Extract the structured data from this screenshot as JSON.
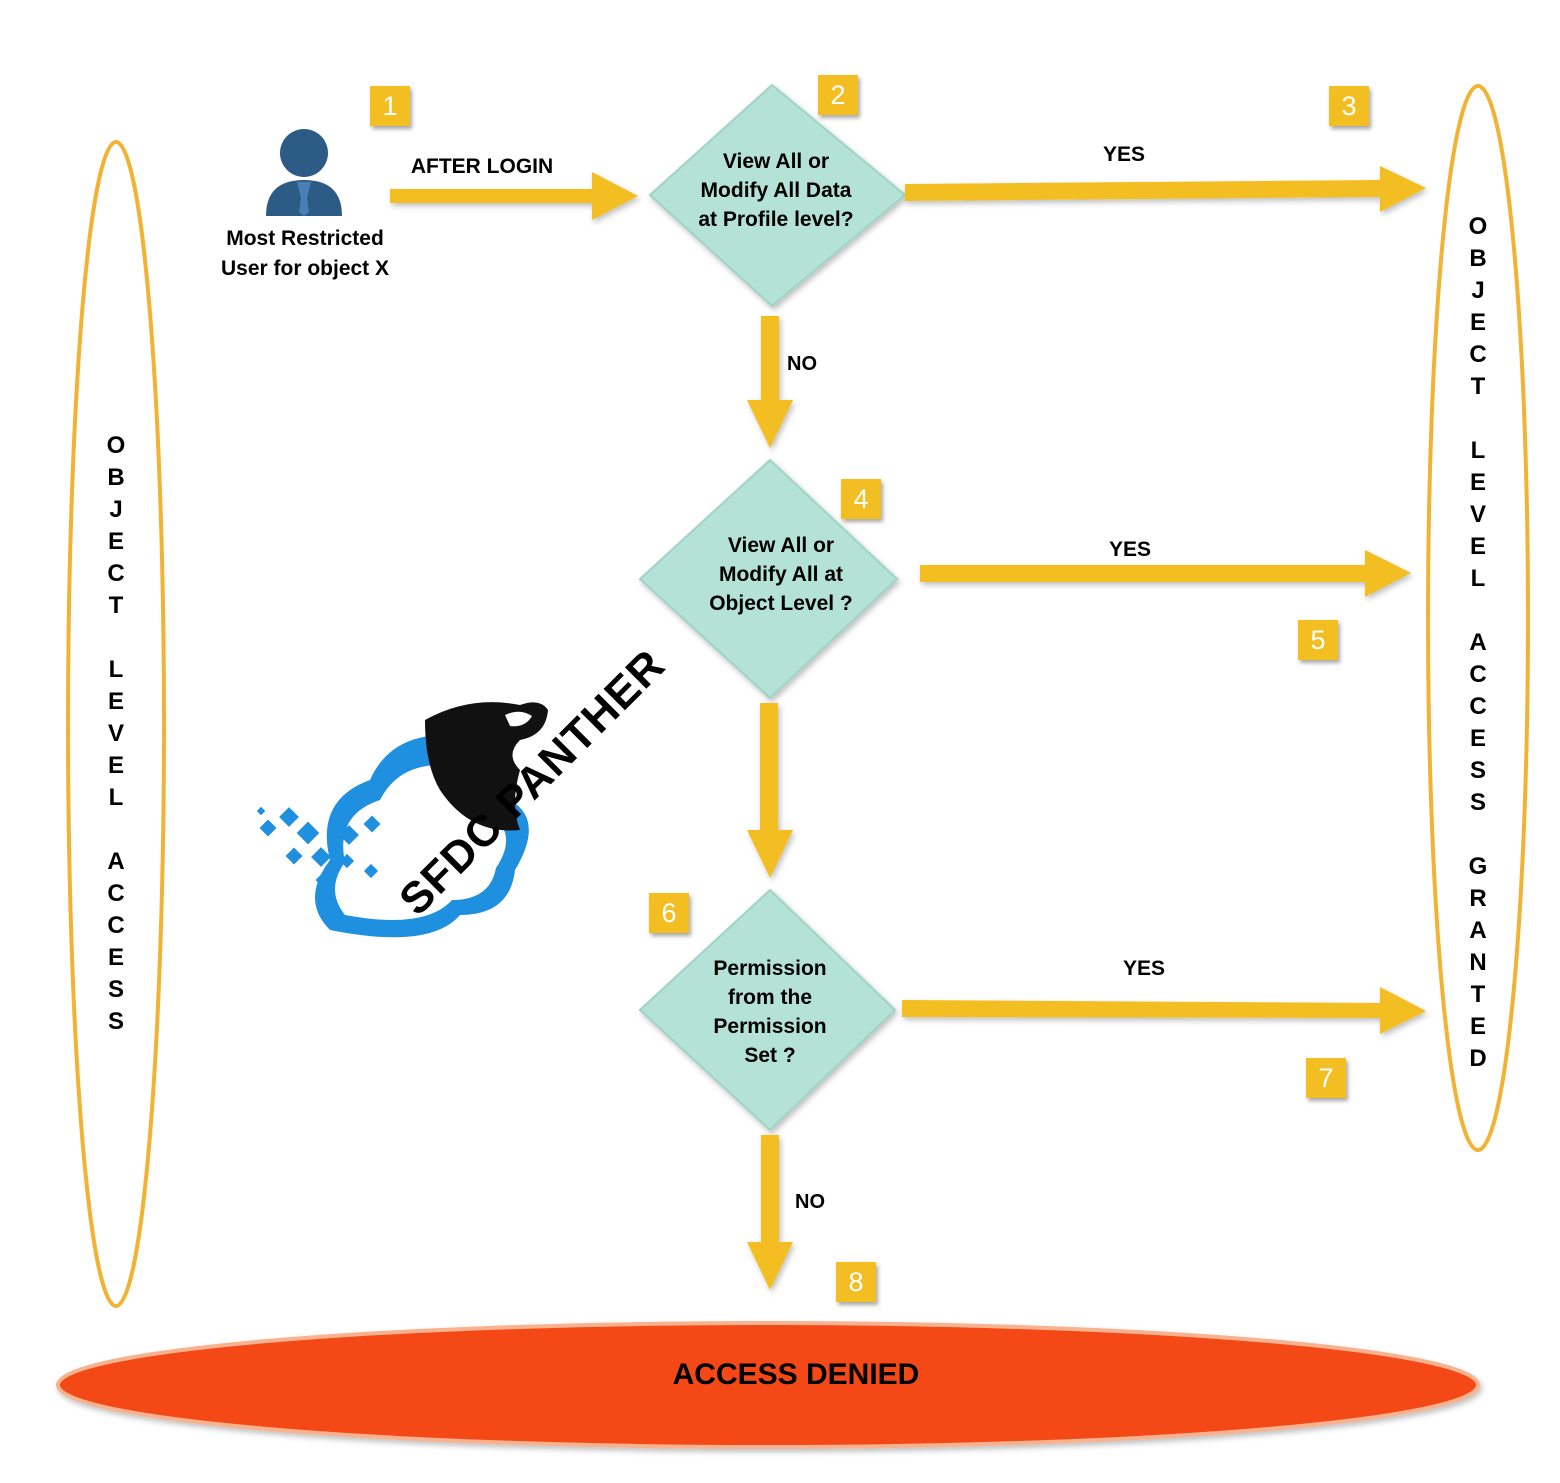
{
  "colors": {
    "arrow": "#f2be22",
    "diamond_fill": "#b4e2d6",
    "diamond_edge": "#9fd4c5",
    "badge": "#f2be22",
    "ellipse_outline": "#f2b233",
    "denied_fill": "#f44a17",
    "user_icon": "#2c5b86"
  },
  "icons": [
    "user-icon",
    "panther-logo-icon"
  ],
  "user": {
    "label_line1": "Most Restricted",
    "label_line2": "User for object X"
  },
  "after_login": "AFTER LOGIN",
  "decisions": {
    "profile": "View All or\nModify All Data\nat Profile level?",
    "object": "View All or\nModify All at\nObject Level ?",
    "permset": "Permission\nfrom the\nPermission\nSet ?"
  },
  "branches": {
    "yes1": "YES",
    "yes2": "YES",
    "yes3": "YES",
    "no1": "NO",
    "no2": "NO"
  },
  "badges": [
    "1",
    "2",
    "3",
    "4",
    "5",
    "6",
    "7",
    "8"
  ],
  "left_pill": "OBJECT LEVEL ACCESS",
  "right_pill": "OBJECT LEVEL ACCESS GRANTED",
  "denied": "ACCESS DENIED",
  "brand": "SFDC PANTHER"
}
